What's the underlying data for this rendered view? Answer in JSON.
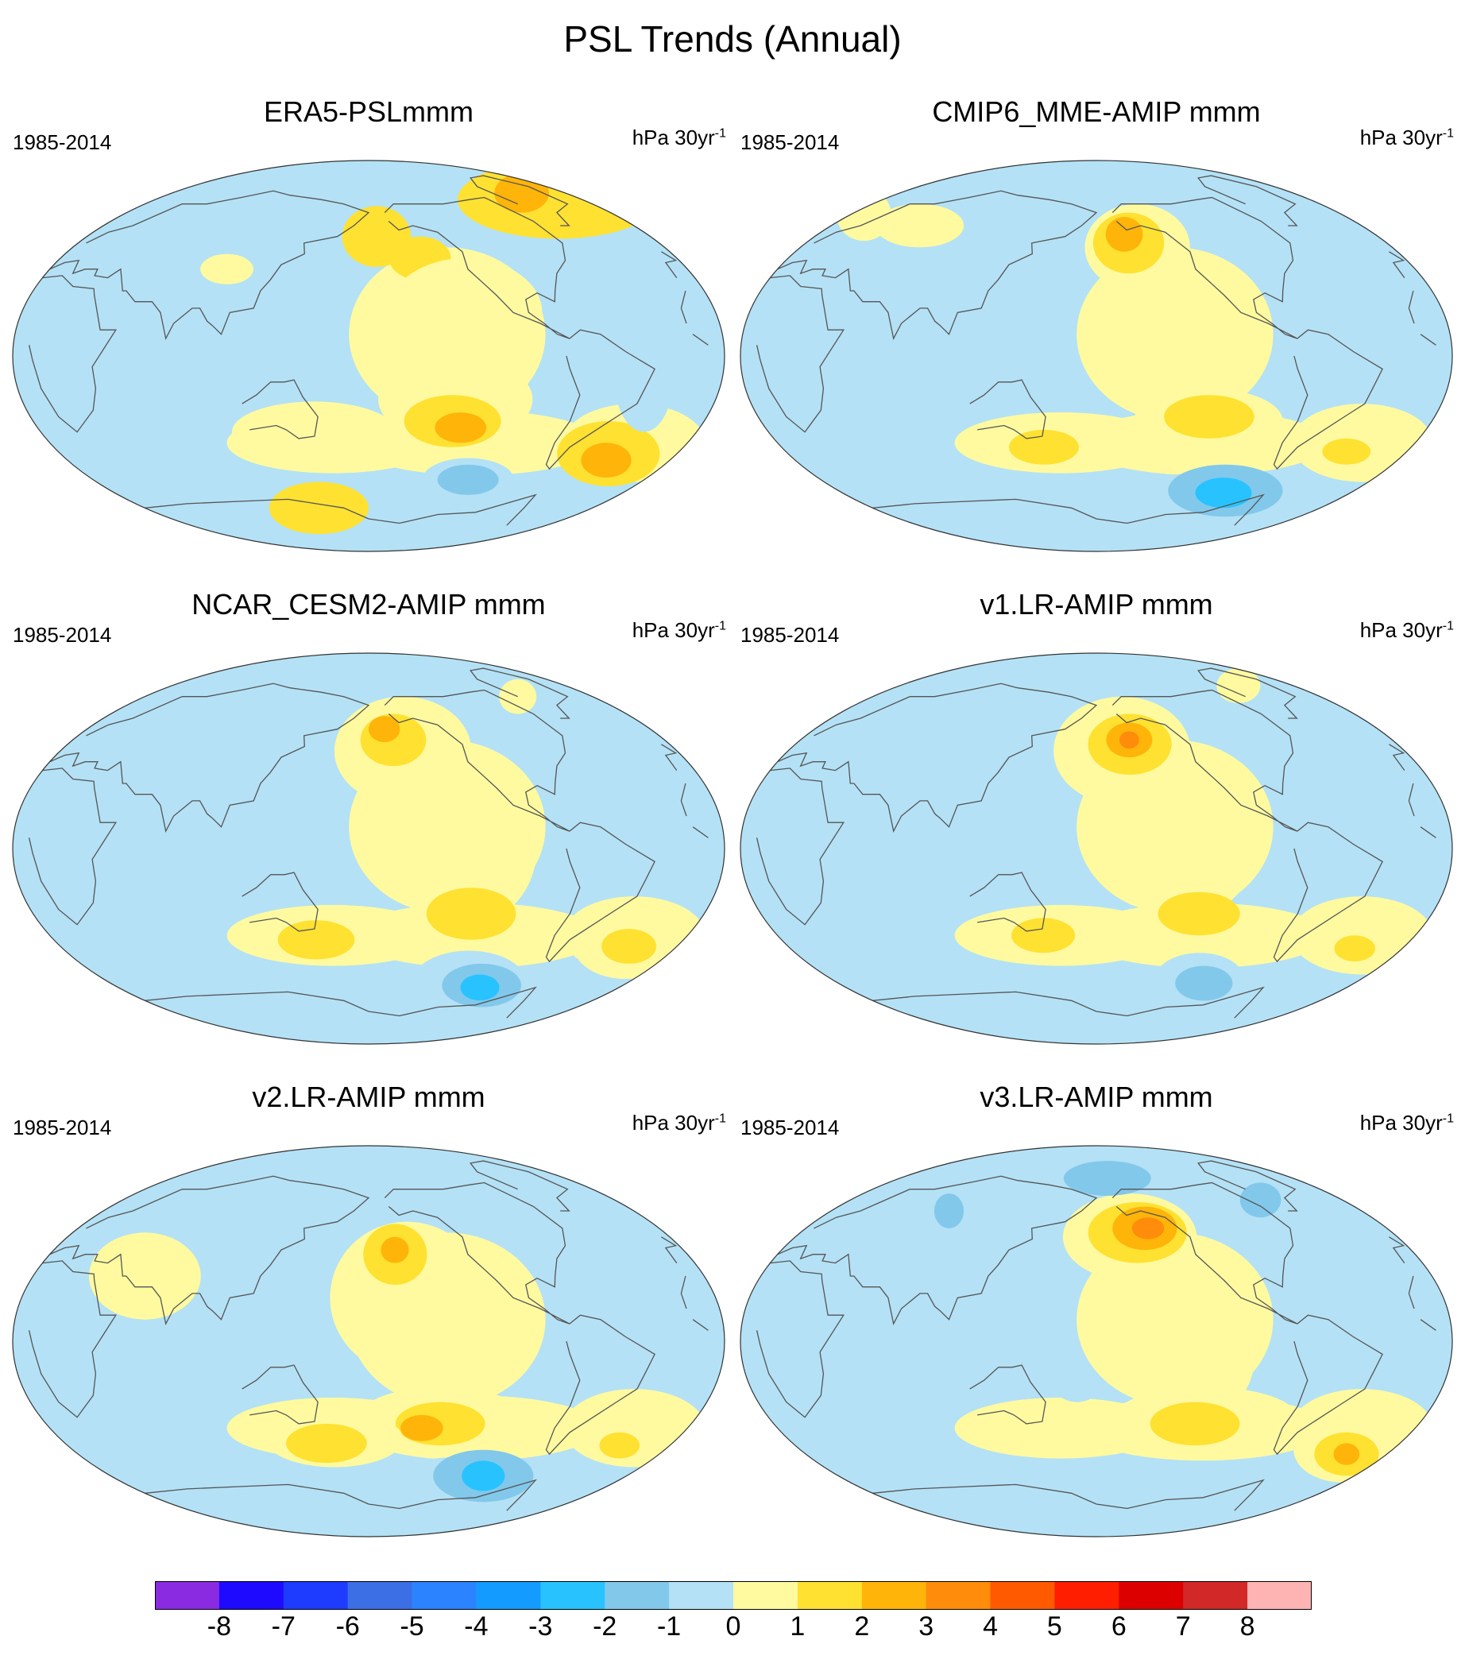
{
  "figure": {
    "title": "PSL Trends (Annual)"
  },
  "panels": [
    {
      "title": "ERA5-PSLmmm",
      "period": "1985-2014",
      "units_base": "hPa 30yr",
      "units_exp": "-1",
      "features": [
        {
          "lon": -20,
          "lat": 72,
          "rx": 85,
          "ry": 18,
          "v": 2
        },
        {
          "lon": -40,
          "lat": 75,
          "rx": 25,
          "ry": 9,
          "v": 3
        },
        {
          "lon": -175,
          "lat": 55,
          "rx": 22,
          "ry": 14,
          "v": 2
        },
        {
          "lon": -150,
          "lat": 45,
          "rx": 18,
          "ry": 10,
          "v": 2
        },
        {
          "lon": -135,
          "lat": -20,
          "rx": 40,
          "ry": 20,
          "v": 1
        },
        {
          "lon": -135,
          "lat": -30,
          "rx": 26,
          "ry": 12,
          "v": 2
        },
        {
          "lon": -130,
          "lat": -33,
          "rx": 14,
          "ry": 7,
          "v": 3
        },
        {
          "lon": -115,
          "lat": -57,
          "rx": 30,
          "ry": 10,
          "v": -1
        },
        {
          "lon": -115,
          "lat": -57,
          "rx": 20,
          "ry": 7,
          "v": -2
        },
        {
          "lon": -40,
          "lat": -45,
          "rx": 30,
          "ry": 15,
          "v": 2
        },
        {
          "lon": -38,
          "lat": -48,
          "rx": 15,
          "ry": 8,
          "v": 3
        },
        {
          "lon": 150,
          "lat": -35,
          "rx": 45,
          "ry": 14,
          "v": 1
        },
        {
          "lon": 140,
          "lat": -70,
          "rx": 40,
          "ry": 12,
          "v": 2
        },
        {
          "lon": -130,
          "lat": 20,
          "rx": 40,
          "ry": 25,
          "v": 1
        },
        {
          "lon": -40,
          "lat": -10,
          "rx": 15,
          "ry": 25,
          "v": -1
        },
        {
          "lon": 100,
          "lat": 40,
          "rx": 15,
          "ry": 7,
          "v": 1
        }
      ]
    },
    {
      "title": "CMIP6_MME-AMIP  mmm",
      "period": "1985-2014",
      "units_base": "hPa 30yr",
      "units_exp": "-1",
      "features": [
        {
          "lon": -155,
          "lat": 50,
          "rx": 32,
          "ry": 20,
          "v": 1
        },
        {
          "lon": -160,
          "lat": 52,
          "rx": 22,
          "ry": 14,
          "v": 2
        },
        {
          "lon": -162,
          "lat": 56,
          "rx": 12,
          "ry": 8,
          "v": 3
        },
        {
          "lon": -130,
          "lat": 10,
          "rx": 30,
          "ry": 35,
          "v": 1
        },
        {
          "lon": -120,
          "lat": -30,
          "rx": 40,
          "ry": 15,
          "v": 1
        },
        {
          "lon": -120,
          "lat": -28,
          "rx": 24,
          "ry": 10,
          "v": 2
        },
        {
          "lon": 160,
          "lat": -40,
          "rx": 48,
          "ry": 12,
          "v": 1
        },
        {
          "lon": 150,
          "lat": -42,
          "rx": 20,
          "ry": 8,
          "v": 2
        },
        {
          "lon": -40,
          "lat": -42,
          "rx": 30,
          "ry": 10,
          "v": 1
        },
        {
          "lon": -35,
          "lat": -44,
          "rx": 14,
          "ry": 6,
          "v": 2
        },
        {
          "lon": -100,
          "lat": -68,
          "rx": 70,
          "ry": 14,
          "v": -1
        },
        {
          "lon": -90,
          "lat": -62,
          "rx": 40,
          "ry": 12,
          "v": -2
        },
        {
          "lon": -90,
          "lat": -63,
          "rx": 20,
          "ry": 7,
          "v": -3
        },
        {
          "lon": 10,
          "lat": 65,
          "rx": 20,
          "ry": 12,
          "v": 1
        },
        {
          "lon": 60,
          "lat": 60,
          "rx": 30,
          "ry": 10,
          "v": 1
        }
      ]
    },
    {
      "title": "NCAR_CESM2-AMIP  mmm",
      "period": "1985-2014",
      "units_base": "hPa 30yr",
      "units_exp": "-1",
      "features": [
        {
          "lon": -160,
          "lat": 45,
          "rx": 40,
          "ry": 25,
          "v": 1
        },
        {
          "lon": -165,
          "lat": 50,
          "rx": 20,
          "ry": 12,
          "v": 2
        },
        {
          "lon": -170,
          "lat": 55,
          "rx": 10,
          "ry": 6,
          "v": 3
        },
        {
          "lon": -130,
          "lat": 0,
          "rx": 35,
          "ry": 35,
          "v": 1
        },
        {
          "lon": -125,
          "lat": -30,
          "rx": 24,
          "ry": 12,
          "v": 2
        },
        {
          "lon": 160,
          "lat": -40,
          "rx": 50,
          "ry": 14,
          "v": 1
        },
        {
          "lon": 150,
          "lat": -42,
          "rx": 22,
          "ry": 9,
          "v": 2
        },
        {
          "lon": -30,
          "lat": -45,
          "rx": 30,
          "ry": 15,
          "v": 1
        },
        {
          "lon": -28,
          "lat": -45,
          "rx": 16,
          "ry": 8,
          "v": 2
        },
        {
          "lon": -110,
          "lat": -62,
          "rx": 40,
          "ry": 15,
          "v": -1
        },
        {
          "lon": -100,
          "lat": -63,
          "rx": 28,
          "ry": 10,
          "v": -2
        },
        {
          "lon": -100,
          "lat": -64,
          "rx": 14,
          "ry": 6,
          "v": -3
        },
        {
          "lon": 30,
          "lat": 70,
          "rx": 60,
          "ry": 10,
          "v": -1
        },
        {
          "lon": -60,
          "lat": 70,
          "rx": 15,
          "ry": 8,
          "v": 1
        }
      ]
    },
    {
      "title": "v1.LR-AMIP  mmm",
      "period": "1985-2014",
      "units_base": "hPa 30yr",
      "units_exp": "-1",
      "features": [
        {
          "lon": -165,
          "lat": 45,
          "rx": 40,
          "ry": 25,
          "v": 1
        },
        {
          "lon": -160,
          "lat": 48,
          "rx": 25,
          "ry": 14,
          "v": 2
        },
        {
          "lon": -160,
          "lat": 50,
          "rx": 14,
          "ry": 8,
          "v": 3
        },
        {
          "lon": -160,
          "lat": 50,
          "rx": 6,
          "ry": 4,
          "v": 4
        },
        {
          "lon": -130,
          "lat": 0,
          "rx": 30,
          "ry": 30,
          "v": 1
        },
        {
          "lon": -125,
          "lat": -30,
          "rx": 22,
          "ry": 10,
          "v": 2
        },
        {
          "lon": 155,
          "lat": -40,
          "rx": 40,
          "ry": 12,
          "v": 1
        },
        {
          "lon": 150,
          "lat": -40,
          "rx": 18,
          "ry": 8,
          "v": 2
        },
        {
          "lon": -30,
          "lat": -45,
          "rx": 25,
          "ry": 12,
          "v": 1
        },
        {
          "lon": -28,
          "lat": -46,
          "rx": 12,
          "ry": 6,
          "v": 2
        },
        {
          "lon": -110,
          "lat": -60,
          "rx": 30,
          "ry": 12,
          "v": -1
        },
        {
          "lon": -105,
          "lat": -62,
          "rx": 20,
          "ry": 8,
          "v": -2
        },
        {
          "lon": 0,
          "lat": 72,
          "rx": 90,
          "ry": 12,
          "v": -1
        },
        {
          "lon": -50,
          "lat": 75,
          "rx": 20,
          "ry": 8,
          "v": 1
        }
      ]
    },
    {
      "title": "v2.LR-AMIP  mmm",
      "period": "1985-2014",
      "units_base": "hPa 30yr",
      "units_exp": "-1",
      "features": [
        {
          "lon": -160,
          "lat": 20,
          "rx": 40,
          "ry": 35,
          "v": 1
        },
        {
          "lon": -165,
          "lat": 40,
          "rx": 18,
          "ry": 14,
          "v": 2
        },
        {
          "lon": -165,
          "lat": 42,
          "rx": 8,
          "ry": 6,
          "v": 3
        },
        {
          "lon": -140,
          "lat": -35,
          "rx": 45,
          "ry": 14,
          "v": 1
        },
        {
          "lon": -140,
          "lat": -38,
          "rx": 25,
          "ry": 10,
          "v": 2
        },
        {
          "lon": -150,
          "lat": -40,
          "rx": 12,
          "ry": 6,
          "v": 3
        },
        {
          "lon": 160,
          "lat": -45,
          "rx": 40,
          "ry": 13,
          "v": 1
        },
        {
          "lon": 155,
          "lat": -47,
          "rx": 24,
          "ry": 9,
          "v": 2
        },
        {
          "lon": -30,
          "lat": -47,
          "rx": 25,
          "ry": 10,
          "v": 1
        },
        {
          "lon": -30,
          "lat": -48,
          "rx": 12,
          "ry": 6,
          "v": 2
        },
        {
          "lon": -100,
          "lat": -65,
          "rx": 80,
          "ry": 12,
          "v": -1
        },
        {
          "lon": -100,
          "lat": -62,
          "rx": 35,
          "ry": 12,
          "v": -2
        },
        {
          "lon": -100,
          "lat": -62,
          "rx": 15,
          "ry": 7,
          "v": -3
        },
        {
          "lon": 0,
          "lat": 55,
          "rx": 40,
          "ry": 12,
          "v": -1
        },
        {
          "lon": 60,
          "lat": 30,
          "rx": 30,
          "ry": 20,
          "v": 1
        }
      ]
    },
    {
      "title": "v3.LR-AMIP  mmm",
      "period": "1985-2014",
      "units_base": "hPa 30yr",
      "units_exp": "-1",
      "features": [
        {
          "lon": -160,
          "lat": 48,
          "rx": 40,
          "ry": 20,
          "v": 1
        },
        {
          "lon": -155,
          "lat": 50,
          "rx": 30,
          "ry": 14,
          "v": 2
        },
        {
          "lon": -150,
          "lat": 52,
          "rx": 20,
          "ry": 10,
          "v": 3
        },
        {
          "lon": -148,
          "lat": 52,
          "rx": 10,
          "ry": 5,
          "v": 4
        },
        {
          "lon": -130,
          "lat": -10,
          "rx": 30,
          "ry": 25,
          "v": 1
        },
        {
          "lon": -120,
          "lat": -35,
          "rx": 50,
          "ry": 14,
          "v": 1
        },
        {
          "lon": -125,
          "lat": -38,
          "rx": 25,
          "ry": 10,
          "v": 2
        },
        {
          "lon": -30,
          "lat": -50,
          "rx": 30,
          "ry": 15,
          "v": 1
        },
        {
          "lon": -25,
          "lat": -52,
          "rx": 20,
          "ry": 10,
          "v": 2
        },
        {
          "lon": -25,
          "lat": -52,
          "rx": 8,
          "ry": 5,
          "v": 3
        },
        {
          "lon": -170,
          "lat": 75,
          "rx": 40,
          "ry": 8,
          "v": -2
        },
        {
          "lon": -60,
          "lat": 65,
          "rx": 15,
          "ry": 8,
          "v": -2
        },
        {
          "lon": 70,
          "lat": 55,
          "rx": 30,
          "ry": 12,
          "v": -1
        },
        {
          "lon": 80,
          "lat": 60,
          "rx": 10,
          "ry": 8,
          "v": -2
        },
        {
          "lon": 170,
          "lat": -20,
          "rx": 12,
          "ry": 8,
          "v": -1
        }
      ]
    }
  ],
  "colorbar": {
    "labels": [
      "-8",
      "-7",
      "-6",
      "-5",
      "-4",
      "-3",
      "-2",
      "-1",
      "0",
      "1",
      "2",
      "3",
      "4",
      "5",
      "6",
      "7",
      "8"
    ],
    "colors": [
      "#8a2be2",
      "#1e0aff",
      "#1e3cff",
      "#3c6ee6",
      "#2b83ff",
      "#149bff",
      "#28c3ff",
      "#82c8eb",
      "#b4e1f5",
      "#fffaa0",
      "#ffe132",
      "#ffb40a",
      "#ff8c0a",
      "#ff5a00",
      "#ff1e00",
      "#dc0000",
      "#d22828",
      "#ffb4b4"
    ]
  },
  "palette": {
    "-3": "#28c3ff",
    "-2": "#82c8eb",
    "-1": "#b4e1f5",
    "0": "#b4e1f5",
    "1": "#fffaa0",
    "2": "#ffe132",
    "3": "#ffb40a",
    "4": "#ff8c0a"
  },
  "base_field": [
    {
      "lon": -140,
      "lat": 10,
      "rx": 50,
      "ry": 40,
      "v": 1
    },
    {
      "lon": -120,
      "lat": -40,
      "rx": 70,
      "ry": 15,
      "v": 1
    },
    {
      "lon": 160,
      "lat": -40,
      "rx": 60,
      "ry": 14,
      "v": 1
    },
    {
      "lon": -30,
      "lat": -40,
      "rx": 40,
      "ry": 18,
      "v": 1
    }
  ]
}
